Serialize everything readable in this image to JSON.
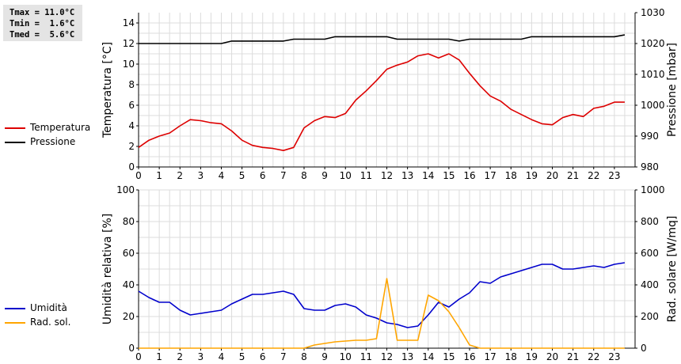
{
  "summary": {
    "tmax": "Tmax = 11.0°C",
    "tmin": "Tmin =  1.6°C",
    "tmed": "Tmed =  5.6°C"
  },
  "legend_top": [
    {
      "label": "Temperatura",
      "color": "#dd0000"
    },
    {
      "label": "Pressione",
      "color": "#000000"
    }
  ],
  "legend_bottom": [
    {
      "label": "Umidità",
      "color": "#0000cc"
    },
    {
      "label": "Rad. sol.",
      "color": "#ffa500"
    }
  ],
  "chart_data": [
    {
      "type": "line",
      "ylabel": "Temperatura [°C]",
      "y2label": "Pressione [mbar]",
      "xlim": [
        0,
        24
      ],
      "ylim": [
        0,
        15
      ],
      "y2lim": [
        980,
        1030
      ],
      "xticks": [
        0,
        1,
        2,
        3,
        4,
        5,
        6,
        7,
        8,
        9,
        10,
        11,
        12,
        13,
        14,
        15,
        16,
        17,
        18,
        19,
        20,
        21,
        22,
        23
      ],
      "yticks": [
        0,
        2,
        4,
        6,
        8,
        10,
        12,
        14
      ],
      "y2ticks": [
        980,
        990,
        1000,
        1010,
        1020,
        1030
      ],
      "grid": true,
      "series": [
        {
          "name": "Temperatura",
          "color": "#dd0000",
          "axis": "left",
          "x": [
            0,
            0.5,
            1,
            1.5,
            2,
            2.5,
            3,
            3.5,
            4,
            4.5,
            5,
            5.5,
            6,
            6.5,
            7,
            7.5,
            8,
            8.5,
            9,
            9.5,
            10,
            10.5,
            11,
            11.5,
            12,
            12.5,
            13,
            13.5,
            14,
            14.5,
            15,
            15.5,
            16,
            16.5,
            17,
            17.5,
            18,
            18.5,
            19,
            19.5,
            20,
            20.5,
            21,
            21.5,
            22,
            22.5,
            23,
            23.5
          ],
          "values": [
            1.9,
            2.6,
            3.0,
            3.3,
            4.0,
            4.6,
            4.5,
            4.3,
            4.2,
            3.5,
            2.6,
            2.1,
            1.9,
            1.8,
            1.6,
            1.9,
            3.8,
            4.5,
            4.9,
            4.8,
            5.2,
            6.5,
            7.4,
            8.4,
            9.5,
            9.9,
            10.2,
            10.8,
            11.0,
            10.6,
            11.0,
            10.4,
            9.1,
            7.9,
            6.9,
            6.4,
            5.6,
            5.1,
            4.6,
            4.2,
            4.1,
            4.8,
            5.1,
            4.9,
            5.7,
            5.9,
            6.3,
            6.3
          ]
        },
        {
          "name": "Pressione",
          "color": "#000000",
          "axis": "right",
          "x": [
            0,
            0.5,
            1,
            1.5,
            2,
            2.5,
            3,
            3.5,
            4,
            4.5,
            5,
            5.5,
            6,
            6.5,
            7,
            7.5,
            8,
            8.5,
            9,
            9.5,
            10,
            10.5,
            11,
            11.5,
            12,
            12.5,
            13,
            13.5,
            14,
            14.5,
            15,
            15.5,
            16,
            16.5,
            17,
            17.5,
            18,
            18.5,
            19,
            19.5,
            20,
            20.5,
            21,
            21.5,
            22,
            22.5,
            23,
            23.5
          ],
          "values": [
            1020.0,
            1020.0,
            1020.0,
            1020.0,
            1020.0,
            1020.0,
            1020.0,
            1020.0,
            1020.0,
            1020.8,
            1020.8,
            1020.8,
            1020.8,
            1020.8,
            1020.8,
            1021.4,
            1021.4,
            1021.4,
            1021.4,
            1022.2,
            1022.2,
            1022.2,
            1022.2,
            1022.2,
            1022.2,
            1021.4,
            1021.4,
            1021.4,
            1021.4,
            1021.4,
            1021.4,
            1020.8,
            1021.4,
            1021.4,
            1021.4,
            1021.4,
            1021.4,
            1021.4,
            1022.2,
            1022.2,
            1022.2,
            1022.2,
            1022.2,
            1022.2,
            1022.2,
            1022.2,
            1022.2,
            1022.8
          ]
        }
      ]
    },
    {
      "type": "line",
      "ylabel": "Umidità relativa [%]",
      "y2label": "Rad. solare [W/mq]",
      "xlim": [
        0,
        24
      ],
      "ylim": [
        0,
        100
      ],
      "y2lim": [
        0,
        1000
      ],
      "xticks": [
        0,
        1,
        2,
        3,
        4,
        5,
        6,
        7,
        8,
        9,
        10,
        11,
        12,
        13,
        14,
        15,
        16,
        17,
        18,
        19,
        20,
        21,
        22,
        23
      ],
      "yticks": [
        0,
        20,
        40,
        60,
        80,
        100
      ],
      "y2ticks": [
        0,
        200,
        400,
        600,
        800,
        1000
      ],
      "grid": true,
      "series": [
        {
          "name": "Umidità",
          "color": "#0000cc",
          "axis": "left",
          "x": [
            0,
            0.5,
            1,
            1.5,
            2,
            2.5,
            3,
            3.5,
            4,
            4.5,
            5,
            5.5,
            6,
            6.5,
            7,
            7.5,
            8,
            8.5,
            9,
            9.5,
            10,
            10.5,
            11,
            11.5,
            12,
            12.5,
            13,
            13.5,
            14,
            14.5,
            15,
            15.5,
            16,
            16.5,
            17,
            17.5,
            18,
            18.5,
            19,
            19.5,
            20,
            20.5,
            21,
            21.5,
            22,
            22.5,
            23,
            23.5
          ],
          "values": [
            36,
            32,
            29,
            29,
            24,
            21,
            22,
            23,
            24,
            28,
            31,
            34,
            34,
            35,
            36,
            34,
            25,
            24,
            24,
            27,
            28,
            26,
            21,
            19,
            16,
            15,
            13,
            14,
            21,
            29,
            26,
            31,
            35,
            42,
            41,
            45,
            47,
            49,
            51,
            53,
            53,
            50,
            50,
            51,
            52,
            51,
            53,
            54
          ]
        },
        {
          "name": "Rad. sol.",
          "color": "#ffa500",
          "axis": "right",
          "x": [
            0,
            0.5,
            1,
            1.5,
            2,
            2.5,
            3,
            3.5,
            4,
            4.5,
            5,
            5.5,
            6,
            6.5,
            7,
            7.5,
            8,
            8.5,
            9,
            9.5,
            10,
            10.5,
            11,
            11.5,
            12,
            12.5,
            13,
            13.5,
            14,
            14.5,
            15,
            15.5,
            16,
            16.5,
            17,
            17.5,
            18,
            18.5,
            19,
            19.5,
            20,
            20.5,
            21,
            21.5,
            22,
            22.5,
            23,
            23.5
          ],
          "values": [
            0,
            0,
            0,
            0,
            0,
            0,
            0,
            0,
            0,
            0,
            0,
            0,
            0,
            0,
            0,
            0,
            0,
            20,
            30,
            40,
            45,
            50,
            50,
            60,
            440,
            50,
            50,
            50,
            335,
            300,
            230,
            130,
            20,
            0,
            0,
            0,
            0,
            0,
            0,
            0,
            0,
            0,
            0,
            0,
            0,
            0,
            0,
            0
          ]
        }
      ]
    }
  ]
}
